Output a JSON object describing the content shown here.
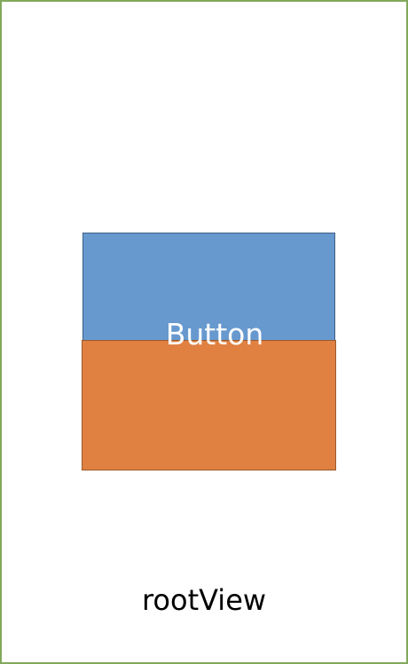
{
  "diagram": {
    "button_label": "Button",
    "root_label": "rootView"
  },
  "colors": {
    "root_border": "#82a85a",
    "blue_view": "#6799cf",
    "orange_view": "#e08142",
    "button_text": "#ffffff",
    "root_text": "#000000"
  }
}
